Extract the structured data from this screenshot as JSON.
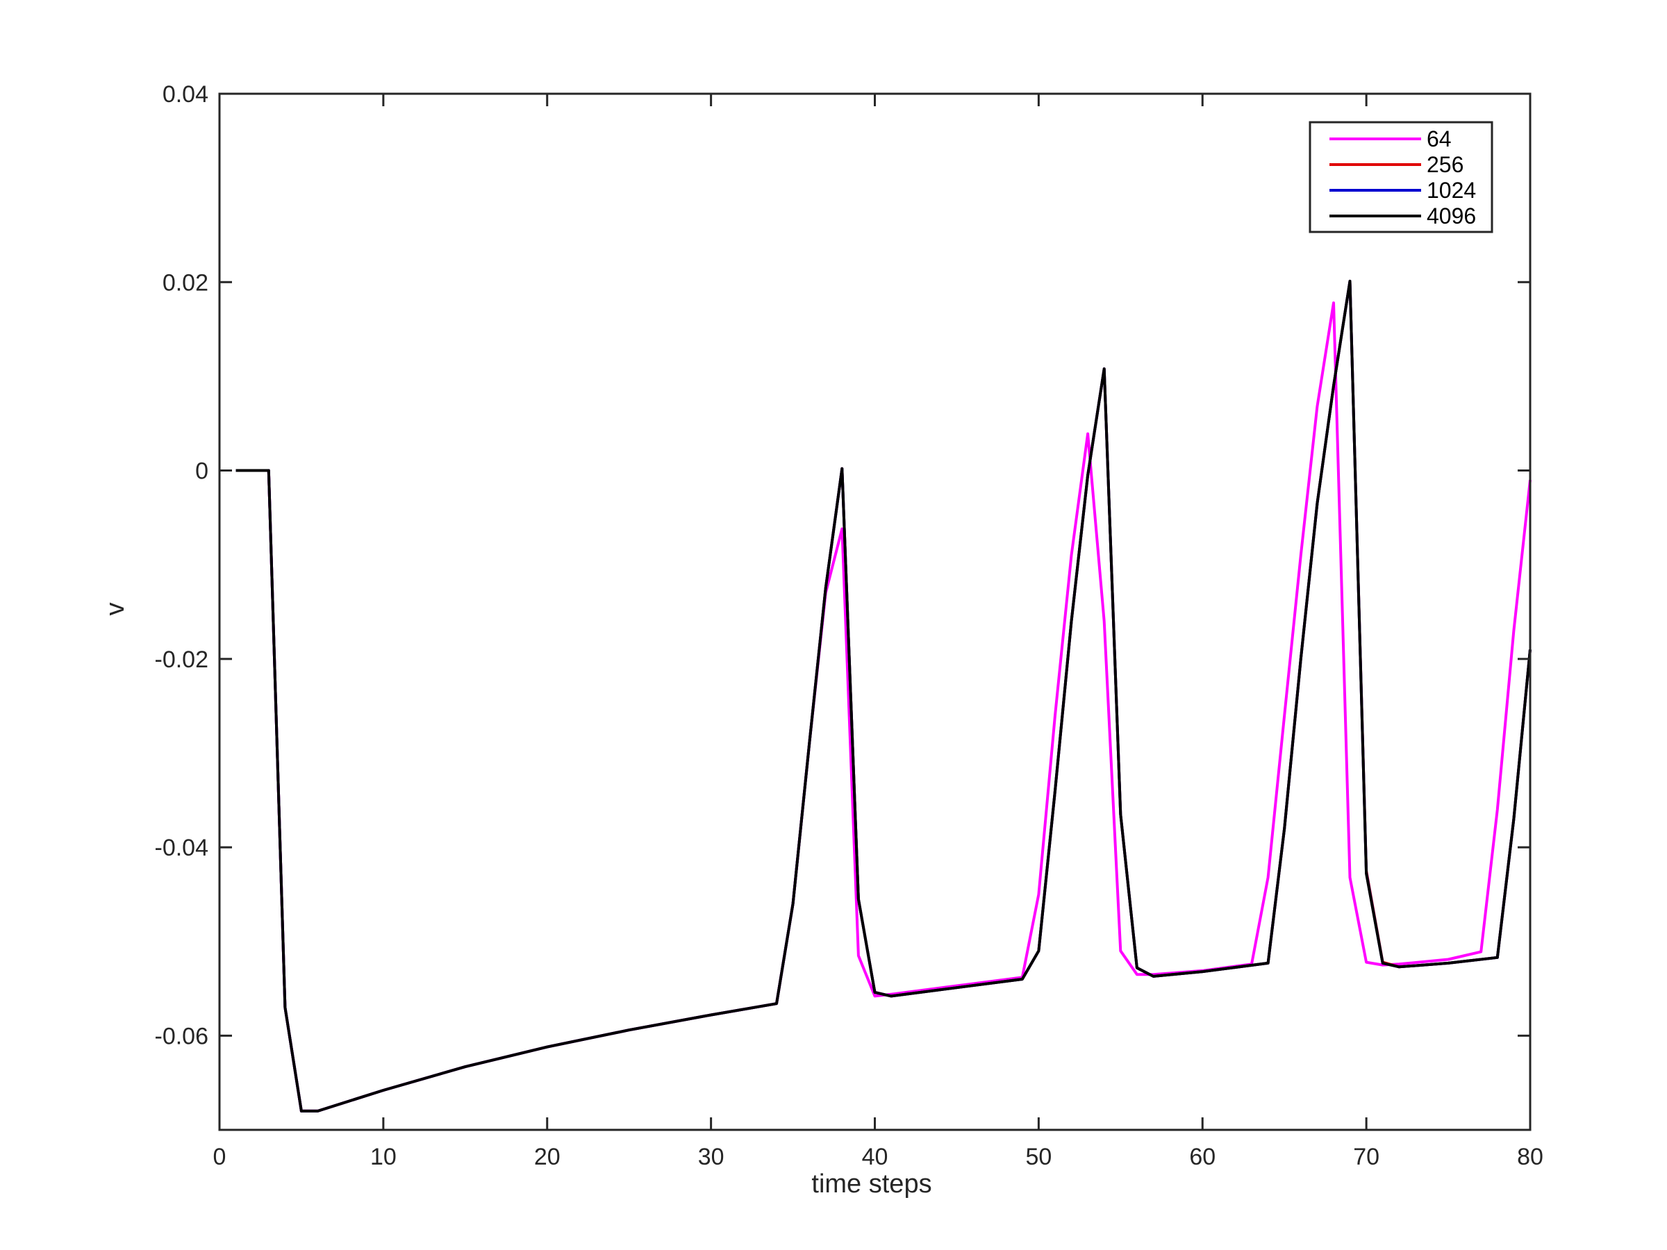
{
  "chart_data": {
    "type": "line",
    "title": "",
    "xlabel": "time steps",
    "ylabel": "v",
    "xlim": [
      0,
      80
    ],
    "ylim": [
      -0.07,
      0.04
    ],
    "xticks": [
      0,
      10,
      20,
      30,
      40,
      50,
      60,
      70,
      80
    ],
    "xtick_labels": [
      "0",
      "10",
      "20",
      "30",
      "40",
      "50",
      "60",
      "70",
      "80"
    ],
    "yticks": [
      -0.06,
      -0.04,
      -0.02,
      0,
      0.02,
      0.04
    ],
    "ytick_labels": [
      "-0.06",
      "-0.04",
      "-0.02",
      "0",
      "0.02",
      "0.04"
    ],
    "grid": false,
    "legend_position": "top-right",
    "series": [
      {
        "name": "64",
        "color": "#ff00ff",
        "x": [
          1,
          2,
          3,
          4,
          5,
          6,
          10,
          15,
          20,
          25,
          30,
          34,
          35,
          36,
          37,
          38,
          39,
          40,
          41,
          45,
          49,
          50,
          51,
          52,
          53,
          54,
          55,
          56,
          57,
          60,
          63,
          64,
          65,
          66,
          67,
          68,
          69,
          70,
          71,
          72,
          75,
          77,
          78,
          79,
          80
        ],
        "y": [
          0,
          0,
          0,
          -0.057,
          -0.068,
          -0.068,
          -0.0658,
          -0.0633,
          -0.0612,
          -0.0594,
          -0.0578,
          -0.0566,
          -0.046,
          -0.029,
          -0.013,
          -0.0062,
          -0.0515,
          -0.0558,
          -0.0556,
          -0.0547,
          -0.0538,
          -0.045,
          -0.026,
          -0.009,
          0.0039,
          -0.016,
          -0.051,
          -0.0535,
          -0.0535,
          -0.0531,
          -0.0524,
          -0.0432,
          -0.026,
          -0.009,
          0.0068,
          0.0178,
          -0.0432,
          -0.0522,
          -0.0525,
          -0.0524,
          -0.0519,
          -0.0511,
          -0.036,
          -0.017,
          -0.001
        ]
      },
      {
        "name": "256",
        "color": "#e00000",
        "x": [
          1,
          2,
          3,
          4,
          5,
          6,
          10,
          15,
          20,
          25,
          30,
          34,
          35,
          36,
          37,
          38,
          39,
          40,
          41,
          45,
          49,
          50,
          51,
          52,
          53,
          54,
          55,
          56,
          57,
          60,
          64,
          65,
          66,
          67,
          68,
          69,
          70,
          71,
          72,
          75,
          78,
          79,
          80
        ],
        "y": [
          0,
          0,
          0,
          -0.057,
          -0.068,
          -0.068,
          -0.0658,
          -0.0633,
          -0.0612,
          -0.0594,
          -0.0578,
          -0.0566,
          -0.046,
          -0.029,
          -0.0125,
          0.0002,
          -0.0455,
          -0.0554,
          -0.0558,
          -0.0549,
          -0.054,
          -0.051,
          -0.034,
          -0.016,
          -0.0005,
          0.0108,
          -0.0365,
          -0.0528,
          -0.0537,
          -0.0532,
          -0.0523,
          -0.038,
          -0.02,
          -0.0035,
          0.009,
          0.0201,
          -0.0425,
          -0.0522,
          -0.0527,
          -0.0523,
          -0.0517,
          -0.037,
          -0.019
        ]
      },
      {
        "name": "1024",
        "color": "#0000d0",
        "x": [
          1,
          2,
          3,
          4,
          5,
          6,
          10,
          15,
          20,
          25,
          30,
          34,
          35,
          36,
          37,
          38,
          39,
          40,
          41,
          45,
          49,
          50,
          51,
          52,
          53,
          54,
          55,
          56,
          57,
          60,
          64,
          65,
          66,
          67,
          68,
          69,
          70,
          71,
          72,
          75,
          78,
          79,
          80
        ],
        "y": [
          0,
          0,
          0,
          -0.057,
          -0.068,
          -0.068,
          -0.0658,
          -0.0633,
          -0.0612,
          -0.0594,
          -0.0578,
          -0.0566,
          -0.046,
          -0.029,
          -0.0125,
          0.0002,
          -0.0455,
          -0.0554,
          -0.0558,
          -0.0549,
          -0.054,
          -0.051,
          -0.034,
          -0.016,
          -0.0005,
          0.0108,
          -0.0365,
          -0.0528,
          -0.0537,
          -0.0532,
          -0.0523,
          -0.038,
          -0.02,
          -0.0035,
          0.009,
          0.0201,
          -0.0427,
          -0.0523,
          -0.0527,
          -0.0523,
          -0.0517,
          -0.037,
          -0.019
        ]
      },
      {
        "name": "4096",
        "color": "#000000",
        "x": [
          1,
          2,
          3,
          4,
          5,
          6,
          10,
          15,
          20,
          25,
          30,
          34,
          35,
          36,
          37,
          38,
          39,
          40,
          41,
          45,
          49,
          50,
          51,
          52,
          53,
          54,
          55,
          56,
          57,
          60,
          64,
          65,
          66,
          67,
          68,
          69,
          70,
          71,
          72,
          75,
          78,
          79,
          80
        ],
        "y": [
          0,
          0,
          0,
          -0.057,
          -0.068,
          -0.068,
          -0.0658,
          -0.0633,
          -0.0612,
          -0.0594,
          -0.0578,
          -0.0566,
          -0.046,
          -0.029,
          -0.0125,
          0.0002,
          -0.0455,
          -0.0554,
          -0.0558,
          -0.0549,
          -0.054,
          -0.051,
          -0.034,
          -0.016,
          -0.0005,
          0.0108,
          -0.0365,
          -0.0528,
          -0.0537,
          -0.0532,
          -0.0523,
          -0.038,
          -0.02,
          -0.0035,
          0.009,
          0.0201,
          -0.0428,
          -0.0523,
          -0.0527,
          -0.0523,
          -0.0517,
          -0.037,
          -0.019
        ]
      }
    ]
  }
}
